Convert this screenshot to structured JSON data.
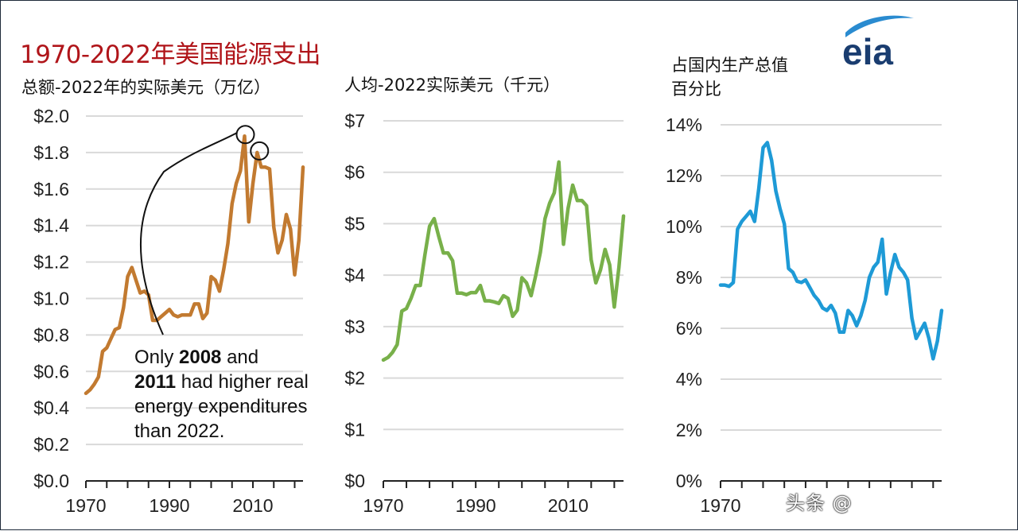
{
  "header": {
    "title": "1970-2022年美国能源支出",
    "logo_text": "eia"
  },
  "annotation": {
    "t1": "Only ",
    "b1": "2008",
    "t2": " and",
    "b2": "2011",
    "t3": " had higher real energy expenditures than 2022."
  },
  "watermark": "头条 @",
  "colors": {
    "total": "#c27a30",
    "per_capita": "#78b04a",
    "gdp_share": "#1e9ad6",
    "title": "#b0151a"
  },
  "chart_data": [
    {
      "type": "line",
      "title": "",
      "subtitle": "总额-2022年的实际美元（万亿）",
      "xlabel": "",
      "ylabel": "",
      "xlim": [
        1970,
        2022
      ],
      "ylim": [
        0,
        2.0
      ],
      "yticks": [
        0,
        0.2,
        0.4,
        0.6,
        0.8,
        1.0,
        1.2,
        1.4,
        1.6,
        1.8,
        2.0
      ],
      "ytick_labels": [
        "$0.0",
        "$0.2",
        "$0.4",
        "$0.6",
        "$0.8",
        "$1.0",
        "$1.2",
        "$1.4",
        "$1.6",
        "$1.8",
        "$2.0"
      ],
      "xticks": [
        1970,
        1990,
        2010
      ],
      "xtick_labels": [
        "1970",
        "1990",
        "2010"
      ],
      "grid": "horizontal",
      "highlight_years": [
        2008,
        2011
      ],
      "x": [
        1970,
        1971,
        1972,
        1973,
        1974,
        1975,
        1976,
        1977,
        1978,
        1979,
        1980,
        1981,
        1982,
        1983,
        1984,
        1985,
        1986,
        1987,
        1988,
        1989,
        1990,
        1991,
        1992,
        1993,
        1994,
        1995,
        1996,
        1997,
        1998,
        1999,
        2000,
        2001,
        2002,
        2003,
        2004,
        2005,
        2006,
        2007,
        2008,
        2009,
        2010,
        2011,
        2012,
        2013,
        2014,
        2015,
        2016,
        2017,
        2018,
        2019,
        2020,
        2021,
        2022
      ],
      "series": [
        {
          "values": [
            0.48,
            0.5,
            0.53,
            0.57,
            0.71,
            0.73,
            0.78,
            0.83,
            0.84,
            0.95,
            1.12,
            1.17,
            1.1,
            1.03,
            1.04,
            1.02,
            0.88,
            0.88,
            0.9,
            0.92,
            0.94,
            0.91,
            0.9,
            0.91,
            0.91,
            0.91,
            0.97,
            0.97,
            0.89,
            0.92,
            1.12,
            1.1,
            1.04,
            1.16,
            1.3,
            1.52,
            1.63,
            1.7,
            1.89,
            1.42,
            1.63,
            1.8,
            1.72,
            1.72,
            1.71,
            1.39,
            1.25,
            1.32,
            1.46,
            1.38,
            1.13,
            1.32,
            1.72
          ]
        }
      ]
    },
    {
      "type": "line",
      "title": "",
      "subtitle": "人均-2022实际美元（千元）",
      "xlabel": "",
      "ylabel": "",
      "xlim": [
        1970,
        2022
      ],
      "ylim": [
        0,
        7
      ],
      "yticks": [
        0,
        1,
        2,
        3,
        4,
        5,
        6,
        7
      ],
      "ytick_labels": [
        "$0",
        "$1",
        "$2",
        "$3",
        "$4",
        "$5",
        "$6",
        "$7"
      ],
      "xticks": [
        1970,
        1990,
        2010
      ],
      "xtick_labels": [
        "1970",
        "1990",
        "2010"
      ],
      "grid": "horizontal",
      "x": [
        1970,
        1971,
        1972,
        1973,
        1974,
        1975,
        1976,
        1977,
        1978,
        1979,
        1980,
        1981,
        1982,
        1983,
        1984,
        1985,
        1986,
        1987,
        1988,
        1989,
        1990,
        1991,
        1992,
        1993,
        1994,
        1995,
        1996,
        1997,
        1998,
        1999,
        2000,
        2001,
        2002,
        2003,
        2004,
        2005,
        2006,
        2007,
        2008,
        2009,
        2010,
        2011,
        2012,
        2013,
        2014,
        2015,
        2016,
        2017,
        2018,
        2019,
        2020,
        2021,
        2022
      ],
      "series": [
        {
          "values": [
            2.35,
            2.4,
            2.5,
            2.65,
            3.3,
            3.35,
            3.55,
            3.8,
            3.8,
            4.4,
            4.95,
            5.1,
            4.75,
            4.43,
            4.43,
            4.28,
            3.65,
            3.65,
            3.62,
            3.66,
            3.66,
            3.8,
            3.5,
            3.5,
            3.48,
            3.45,
            3.6,
            3.55,
            3.2,
            3.32,
            3.95,
            3.85,
            3.6,
            4.0,
            4.45,
            5.1,
            5.4,
            5.6,
            6.2,
            4.6,
            5.3,
            5.75,
            5.45,
            5.45,
            5.35,
            4.3,
            3.85,
            4.1,
            4.5,
            4.2,
            3.38,
            4.15,
            5.15
          ]
        }
      ]
    },
    {
      "type": "line",
      "title": "",
      "subtitle_lines": [
        "占国内生产总值",
        "百分比"
      ],
      "xlabel": "",
      "ylabel": "",
      "xlim": [
        1970,
        2022
      ],
      "ylim": [
        0,
        14
      ],
      "yticks": [
        0,
        2,
        4,
        6,
        8,
        10,
        12,
        14
      ],
      "ytick_labels": [
        "0%",
        "2%",
        "4%",
        "6%",
        "8%",
        "10%",
        "12%",
        "14%"
      ],
      "xticks": [
        1970
      ],
      "xtick_labels": [
        "1970"
      ],
      "grid": "horizontal",
      "x": [
        1970,
        1971,
        1972,
        1973,
        1974,
        1975,
        1976,
        1977,
        1978,
        1979,
        1980,
        1981,
        1982,
        1983,
        1984,
        1985,
        1986,
        1987,
        1988,
        1989,
        1990,
        1991,
        1992,
        1993,
        1994,
        1995,
        1996,
        1997,
        1998,
        1999,
        2000,
        2001,
        2002,
        2003,
        2004,
        2005,
        2006,
        2007,
        2008,
        2009,
        2010,
        2011,
        2012,
        2013,
        2014,
        2015,
        2016,
        2017,
        2018,
        2019,
        2020,
        2021,
        2022
      ],
      "series": [
        {
          "values": [
            7.7,
            7.7,
            7.65,
            7.8,
            9.9,
            10.2,
            10.4,
            10.6,
            10.2,
            11.5,
            13.1,
            13.3,
            12.6,
            11.4,
            10.7,
            10.1,
            8.35,
            8.2,
            7.85,
            7.8,
            7.9,
            7.6,
            7.3,
            7.1,
            6.8,
            6.7,
            6.9,
            6.6,
            5.85,
            5.85,
            6.7,
            6.5,
            6.1,
            6.5,
            7.1,
            8.0,
            8.4,
            8.6,
            9.5,
            7.35,
            8.2,
            8.9,
            8.4,
            8.2,
            7.9,
            6.4,
            5.6,
            5.9,
            6.2,
            5.6,
            4.8,
            5.5,
            6.7
          ]
        }
      ]
    }
  ]
}
